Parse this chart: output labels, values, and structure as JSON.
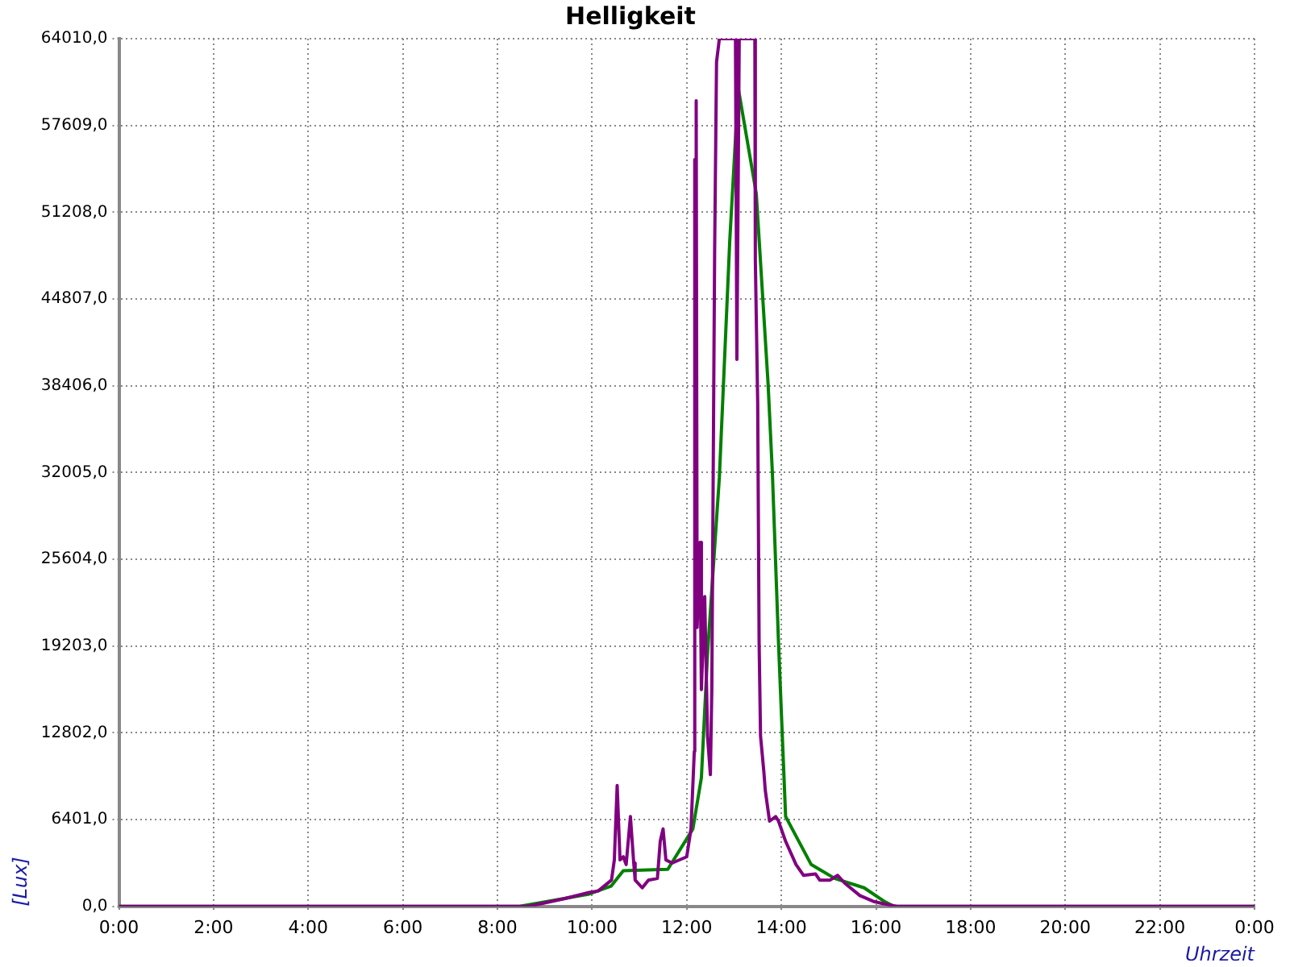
{
  "chart_data": {
    "type": "line",
    "title": "Helligkeit",
    "xlabel": "Uhrzeit",
    "ylabel": "[Lux]",
    "xlim": [
      0,
      24
    ],
    "xticks": [
      {
        "value": 0,
        "label": "0:00"
      },
      {
        "value": 2,
        "label": "2:00"
      },
      {
        "value": 4,
        "label": "4:00"
      },
      {
        "value": 6,
        "label": "6:00"
      },
      {
        "value": 8,
        "label": "8:00"
      },
      {
        "value": 10,
        "label": "10:00"
      },
      {
        "value": 12,
        "label": "12:00"
      },
      {
        "value": 14,
        "label": "14:00"
      },
      {
        "value": 16,
        "label": "16:00"
      },
      {
        "value": 18,
        "label": "18:00"
      },
      {
        "value": 20,
        "label": "20:00"
      },
      {
        "value": 22,
        "label": "22:00"
      },
      {
        "value": 24,
        "label": "0:00"
      }
    ],
    "ylim": [
      0,
      64010
    ],
    "yticks": [
      {
        "value": 0,
        "label": "0,0"
      },
      {
        "value": 6401,
        "label": "6401,0"
      },
      {
        "value": 12802,
        "label": "12802,0"
      },
      {
        "value": 19203,
        "label": "19203,0"
      },
      {
        "value": 25604,
        "label": "25604,0"
      },
      {
        "value": 32005,
        "label": "32005,0"
      },
      {
        "value": 38406,
        "label": "38406,0"
      },
      {
        "value": 44807,
        "label": "44807,0"
      },
      {
        "value": 51208,
        "label": "51208,0"
      },
      {
        "value": 57609,
        "label": "57609,0"
      },
      {
        "value": 64010,
        "label": "64010,0"
      }
    ],
    "grid": true,
    "legend": false,
    "marker": "none",
    "line_style": "solid",
    "series": [
      {
        "color": "#800080",
        "x": [
          0,
          8.66,
          9.41,
          9.94,
          10.13,
          10.41,
          10.47,
          10.53,
          10.59,
          10.66,
          10.72,
          10.81,
          10.88,
          10.91,
          11.06,
          11.19,
          11.38,
          11.44,
          11.5,
          11.56,
          11.69,
          12.0,
          12.09,
          12.16,
          12.17,
          12.19,
          12.2,
          12.22,
          12.28,
          12.31,
          12.38,
          12.44,
          12.5,
          12.53,
          12.59,
          12.63,
          12.69,
          13.03,
          13.06,
          13.11,
          13.44,
          13.45,
          13.5,
          13.53,
          13.56,
          13.63,
          13.66,
          13.75,
          13.88,
          13.94,
          14.09,
          14.31,
          14.47,
          14.72,
          14.81,
          15.03,
          15.19,
          15.34,
          15.66,
          15.97,
          16.28,
          16.44,
          24
        ],
        "values": [
          0,
          0,
          570,
          1030,
          1140,
          1940,
          3430,
          8920,
          3430,
          3660,
          3090,
          6630,
          3200,
          1940,
          1370,
          1940,
          2060,
          4800,
          5720,
          3430,
          3200,
          3660,
          5720,
          11430,
          55090,
          32000,
          59440,
          20570,
          26860,
          16000,
          22860,
          12570,
          9720,
          16000,
          48350,
          62290,
          64010,
          64010,
          40350,
          64010,
          64010,
          47660,
          37150,
          19430,
          12570,
          9940,
          8570,
          6290,
          6630,
          6290,
          4800,
          3090,
          2290,
          2400,
          1940,
          1940,
          2290,
          1710,
          800,
          340,
          110,
          0,
          0
        ]
      },
      {
        "color": "#008000",
        "x": [
          0,
          8.47,
          9.94,
          10.4,
          10.66,
          11.6,
          12.13,
          12.31,
          12.44,
          12.69,
          12.91,
          13.09,
          13.47,
          13.72,
          13.81,
          13.94,
          14.09,
          14.63,
          15.13,
          15.75,
          16.19,
          16.38,
          24
        ],
        "values": [
          0,
          0,
          910,
          1490,
          2630,
          2740,
          5720,
          9490,
          18630,
          31660,
          49140,
          60350,
          52580,
          38520,
          32000,
          19430,
          6630,
          3090,
          2060,
          1370,
          340,
          0,
          0
        ]
      }
    ]
  }
}
